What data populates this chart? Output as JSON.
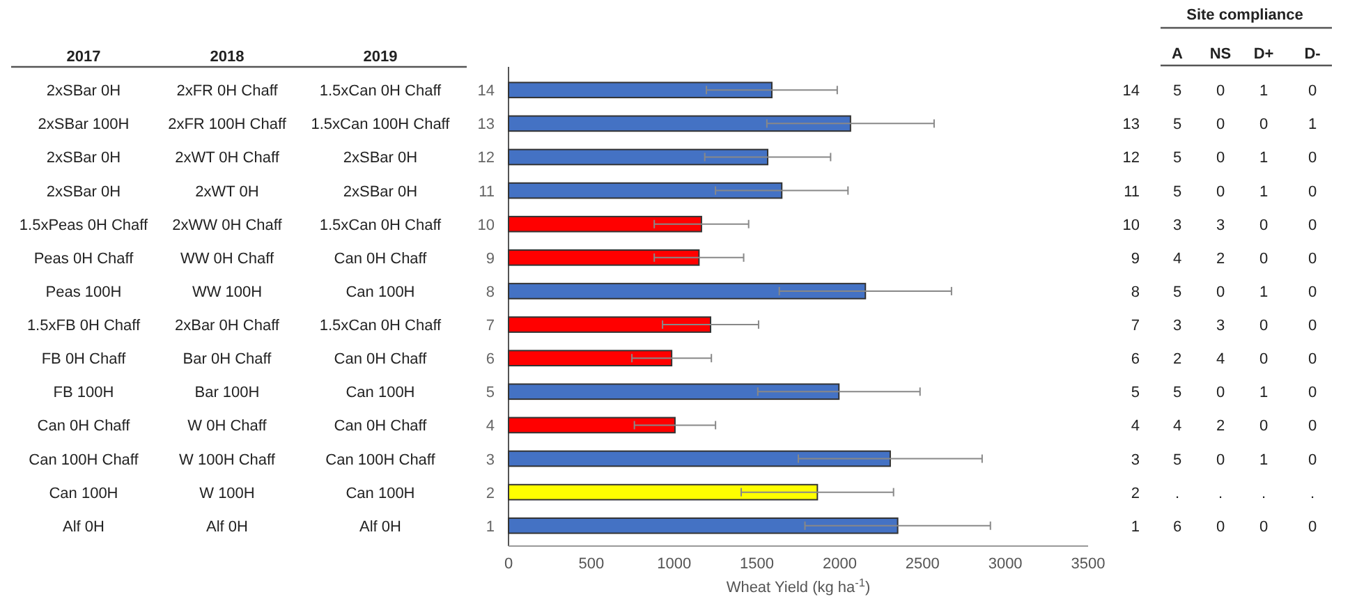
{
  "chart_data": {
    "type": "bar",
    "orientation": "horizontal",
    "xlabel": "Wheat Yield (kg ha$^{-1}$)",
    "categories": [
      "14",
      "13",
      "12",
      "11",
      "10",
      "9",
      "8",
      "7",
      "6",
      "5",
      "4",
      "3",
      "2",
      "1"
    ],
    "values": [
      1590,
      2065,
      1565,
      1650,
      1165,
      1150,
      2155,
      1220,
      985,
      1995,
      1005,
      2305,
      1865,
      2350
    ],
    "errors": [
      395,
      505,
      380,
      400,
      285,
      270,
      520,
      290,
      240,
      490,
      245,
      555,
      460,
      560
    ],
    "colors": [
      "#4472c4",
      "#4472c4",
      "#4472c4",
      "#4472c4",
      "#ff0000",
      "#ff0000",
      "#4472c4",
      "#ff0000",
      "#ff0000",
      "#4472c4",
      "#ff0000",
      "#4472c4",
      "#ffff00",
      "#4472c4"
    ],
    "xlim": [
      0,
      3500
    ],
    "xticks": [
      0,
      500,
      1000,
      1500,
      2000,
      2500,
      3000,
      3500
    ],
    "grid": false,
    "annotations": [
      "2017",
      "2018",
      "2019",
      "2xSBar 0H",
      "2xFR 0H Chaff",
      "1.5xCan 0H Chaff",
      "2xSBar 100H",
      "2xFR 100H Chaff",
      "1.5xCan 100H Chaff",
      "2xSBar 0H",
      "2xWT 0H Chaff",
      "2xSBar 0H",
      "2xSBar 0H",
      "2xWT 0H",
      "2xSBar 0H",
      "1.5xPeas 0H Chaff",
      "2xWW 0H Chaff",
      "1.5xCan 0H Chaff",
      "Peas 0H Chaff",
      "WW 0H Chaff",
      "Can 0H Chaff",
      "Peas 100H",
      "WW 100H",
      "Can 100H",
      "1.5xFB 0H Chaff",
      "2xBar 0H Chaff",
      "1.5xCan 0H Chaff",
      "FB 0H Chaff",
      "Bar 0H Chaff",
      "Can 0H Chaff",
      "FB 100H",
      "Bar 100H",
      "Can 100H",
      "Can 0H Chaff",
      "W 0H Chaff",
      "Can 0H Chaff",
      "Can 100H Chaff",
      "W 100H Chaff",
      "Can 100H Chaff",
      "Can 100H",
      "W 100H",
      "Can 100H",
      "Alf 0H",
      "Alf 0H",
      "Alf 0H",
      "Site compliance",
      "A",
      "NS",
      "D+",
      "D-",
      "5",
      "0",
      "1",
      "0",
      "5",
      "0",
      "0",
      "1",
      "5",
      "0",
      "1",
      "0",
      "5",
      "0",
      "1",
      "0",
      "3",
      "3",
      "0",
      "0",
      "4",
      "2",
      "0",
      "0",
      "5",
      "0",
      "1",
      "0",
      "3",
      "3",
      "0",
      "0",
      "2",
      "4",
      "0",
      "0",
      "5",
      "0",
      "1",
      "0",
      "4",
      "2",
      "0",
      "0",
      "5",
      "0",
      "1",
      "0",
      ".",
      ".",
      ".",
      ".",
      "6",
      "0",
      "0",
      "0"
    ]
  }
}
